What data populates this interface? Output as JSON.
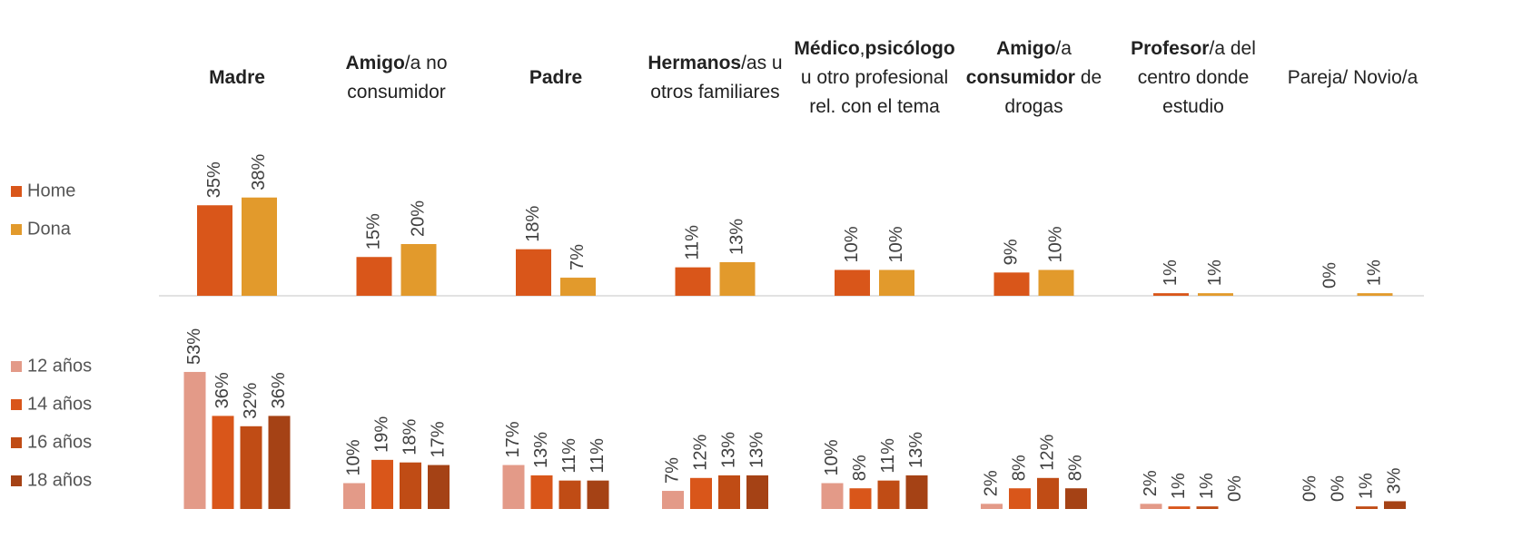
{
  "chart_data": [
    {
      "type": "bar",
      "categories": [
        [
          {
            "text": "Madre",
            "bold": true
          }
        ],
        [
          {
            "text": "Amigo",
            "bold": true
          },
          {
            "text": "/a no consumidor",
            "bold": false
          }
        ],
        [
          {
            "text": "Padre",
            "bold": true
          }
        ],
        [
          {
            "text": "Hermanos",
            "bold": true
          },
          {
            "text": "/as u otros familiares",
            "bold": false
          }
        ],
        [
          {
            "text": "Médico",
            "bold": true
          },
          {
            "text": ",",
            "bold": false
          },
          {
            "text": "psicólogo",
            "bold": true
          },
          {
            "text": " u otro profesional rel. con el tema",
            "bold": false
          }
        ],
        [
          {
            "text": "Amigo",
            "bold": true
          },
          {
            "text": "/a ",
            "bold": false
          },
          {
            "text": "consumidor",
            "bold": true
          },
          {
            "text": " de drogas",
            "bold": false
          }
        ],
        [
          {
            "text": "Profesor",
            "bold": true
          },
          {
            "text": "/a del centro donde estudio",
            "bold": false
          }
        ],
        [
          {
            "text": "Pareja/ Novio/a",
            "bold": false
          }
        ]
      ],
      "series": [
        {
          "name": "Home",
          "color": "#d9561a",
          "values": [
            35,
            15,
            18,
            11,
            10,
            9,
            1,
            0
          ],
          "value_labels": [
            "35%",
            "15%",
            "18%",
            "11%",
            "10%",
            "9%",
            "1%",
            "0%"
          ]
        },
        {
          "name": "Dona",
          "color": "#e29a2c",
          "values": [
            38,
            20,
            7,
            13,
            10,
            10,
            1,
            1
          ],
          "value_labels": [
            "38%",
            "20%",
            "7%",
            "13%",
            "10%",
            "10%",
            "1%",
            "1%"
          ]
        }
      ]
    },
    {
      "type": "bar",
      "series": [
        {
          "name": "12 años",
          "color": "#e39a88",
          "values": [
            53,
            10,
            17,
            7,
            10,
            2,
            2,
            0
          ],
          "value_labels": [
            "53%",
            "10%",
            "17%",
            "7%",
            "10%",
            "2%",
            "2%",
            "0%"
          ]
        },
        {
          "name": "14 años",
          "color": "#d9561a",
          "values": [
            36,
            19,
            13,
            12,
            8,
            8,
            1,
            0
          ],
          "value_labels": [
            "36%",
            "19%",
            "13%",
            "12%",
            "8%",
            "8%",
            "1%",
            "0%"
          ]
        },
        {
          "name": "16 años",
          "color": "#c04c15",
          "values": [
            32,
            18,
            11,
            13,
            11,
            12,
            1,
            1
          ],
          "value_labels": [
            "32%",
            "18%",
            "11%",
            "13%",
            "11%",
            "12%",
            "1%",
            "1%"
          ]
        },
        {
          "name": "18 años",
          "color": "#a54215",
          "values": [
            36,
            17,
            11,
            13,
            13,
            8,
            0,
            3
          ],
          "value_labels": [
            "36%",
            "17%",
            "11%",
            "13%",
            "13%",
            "8%",
            "0%",
            "3%"
          ]
        }
      ]
    }
  ]
}
